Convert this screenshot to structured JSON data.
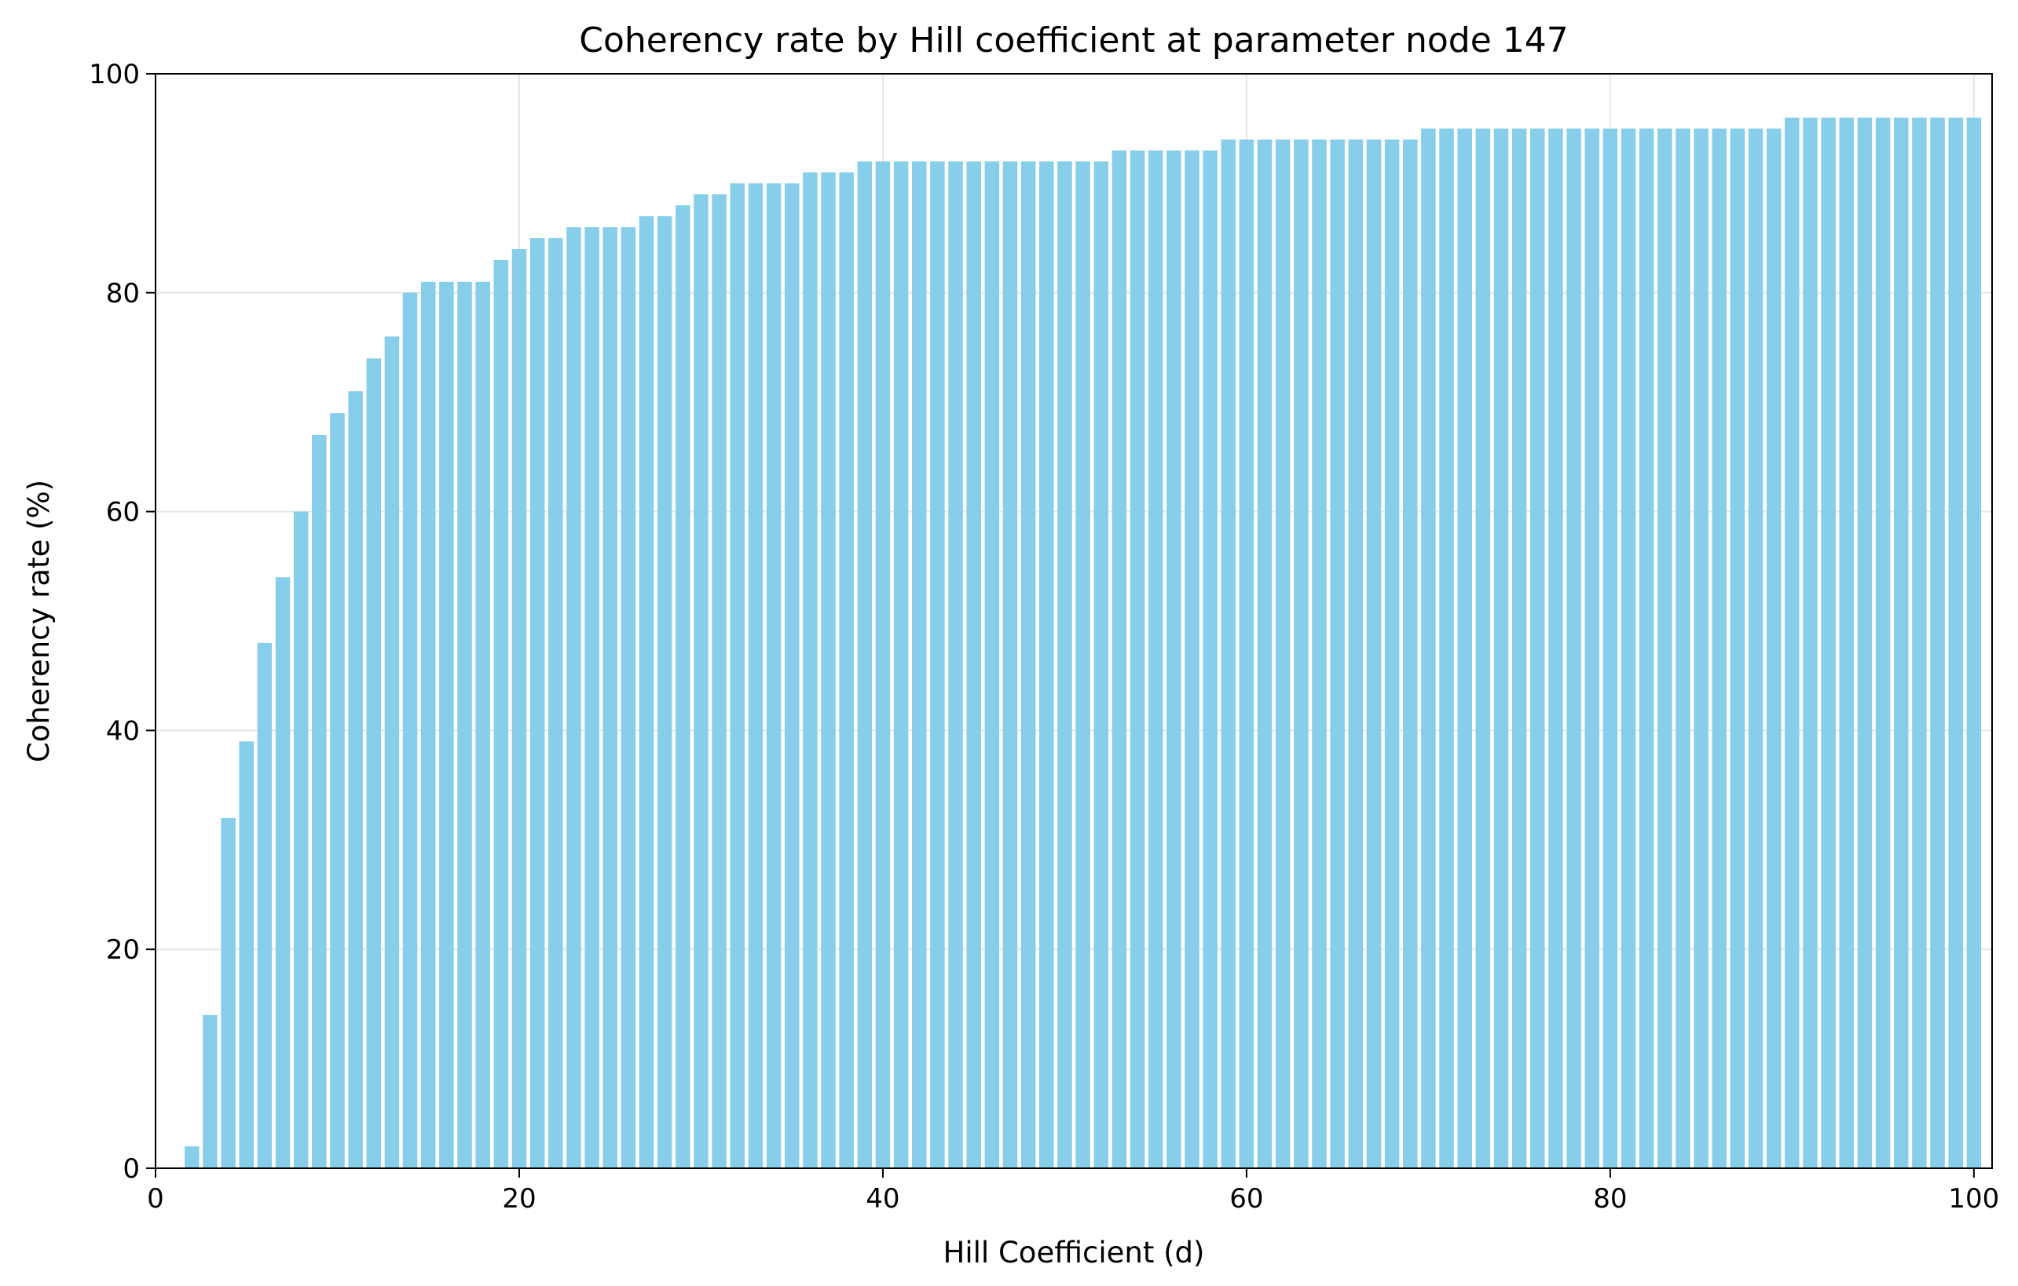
{
  "chart_data": {
    "type": "bar",
    "title": "Coherency rate by Hill coefficient at parameter node 147",
    "xlabel": "Hill Coefficient (d)",
    "ylabel": "Coherency rate (%)",
    "xlim": [
      0,
      101
    ],
    "ylim": [
      0,
      100
    ],
    "xticks": [
      "0",
      "20",
      "40",
      "60",
      "80",
      "100"
    ],
    "yticks": [
      "0",
      "20",
      "40",
      "60",
      "80",
      "100"
    ],
    "grid": true,
    "bar_color": "#87CEEB",
    "x": [
      2,
      3,
      4,
      5,
      6,
      7,
      8,
      9,
      10,
      11,
      12,
      13,
      14,
      15,
      16,
      17,
      18,
      19,
      20,
      21,
      22,
      23,
      24,
      25,
      26,
      27,
      28,
      29,
      30,
      31,
      32,
      33,
      34,
      35,
      36,
      37,
      38,
      39,
      40,
      41,
      42,
      43,
      44,
      45,
      46,
      47,
      48,
      49,
      50,
      51,
      52,
      53,
      54,
      55,
      56,
      57,
      58,
      59,
      60,
      61,
      62,
      63,
      64,
      65,
      66,
      67,
      68,
      69,
      70,
      71,
      72,
      73,
      74,
      75,
      76,
      77,
      78,
      79,
      80,
      81,
      82,
      83,
      84,
      85,
      86,
      87,
      88,
      89,
      90,
      91,
      92,
      93,
      94,
      95,
      96,
      97,
      98,
      99,
      100
    ],
    "values": [
      2,
      14,
      32,
      39,
      48,
      54,
      60,
      67,
      69,
      71,
      74,
      76,
      80,
      81,
      81,
      81,
      81,
      83,
      84,
      85,
      85,
      86,
      86,
      86,
      86,
      87,
      87,
      88,
      89,
      89,
      90,
      90,
      90,
      90,
      91,
      91,
      91,
      92,
      92,
      92,
      92,
      92,
      92,
      92,
      92,
      92,
      92,
      92,
      92,
      92,
      92,
      93,
      93,
      93,
      93,
      93,
      93,
      94,
      94,
      94,
      94,
      94,
      94,
      94,
      94,
      94,
      94,
      94,
      95,
      95,
      95,
      95,
      95,
      95,
      95,
      95,
      95,
      95,
      95,
      95,
      95,
      95,
      95,
      95,
      95,
      95,
      95,
      95,
      96,
      96,
      96,
      96,
      96,
      96,
      96,
      96,
      96,
      96,
      96
    ]
  }
}
